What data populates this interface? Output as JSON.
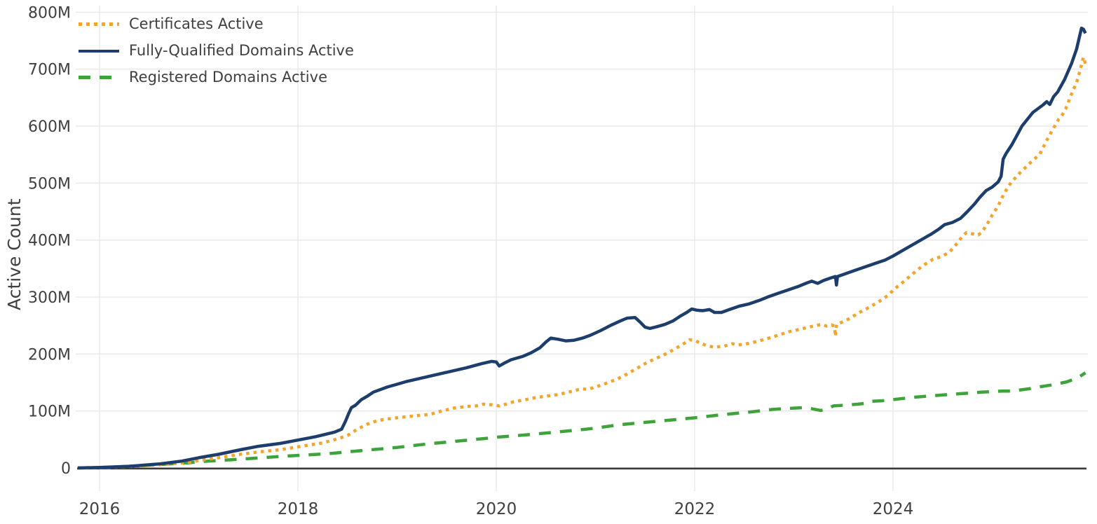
{
  "chart_data": {
    "type": "line",
    "title": "",
    "xlabel": "",
    "ylabel": "Active Count",
    "y_unit": "millions",
    "x_range": [
      2015.78,
      2025.97
    ],
    "ylim": [
      0,
      800
    ],
    "grid": "on",
    "legend_position": "top-left-inside",
    "background_color": "#ffffff",
    "gridline_color": "#e8e8e8",
    "axis_line_color": "#3a3a3a",
    "tick_text_color": "#404040",
    "yticks": [
      {
        "value": 0,
        "label": "0"
      },
      {
        "value": 100,
        "label": "100M"
      },
      {
        "value": 200,
        "label": "200M"
      },
      {
        "value": 300,
        "label": "300M"
      },
      {
        "value": 400,
        "label": "400M"
      },
      {
        "value": 500,
        "label": "500M"
      },
      {
        "value": 600,
        "label": "600M"
      },
      {
        "value": 700,
        "label": "700M"
      },
      {
        "value": 800,
        "label": "800M"
      }
    ],
    "xticks": [
      {
        "value": 2016,
        "label": "2016"
      },
      {
        "value": 2018,
        "label": "2018"
      },
      {
        "value": 2020,
        "label": "2020"
      },
      {
        "value": 2022,
        "label": "2022"
      },
      {
        "value": 2024,
        "label": "2024"
      }
    ],
    "series": [
      {
        "name": "Certificates Active",
        "color": "#f3a42a",
        "style": "dotted",
        "points": [
          [
            2015.78,
            0
          ],
          [
            2016.05,
            1
          ],
          [
            2016.35,
            3
          ],
          [
            2016.65,
            6
          ],
          [
            2016.9,
            10
          ],
          [
            2017.0,
            13
          ],
          [
            2017.2,
            18
          ],
          [
            2017.42,
            24
          ],
          [
            2017.6,
            28
          ],
          [
            2017.82,
            32
          ],
          [
            2018.0,
            37
          ],
          [
            2018.25,
            44
          ],
          [
            2018.4,
            51
          ],
          [
            2018.5,
            57
          ],
          [
            2018.6,
            68
          ],
          [
            2018.7,
            77
          ],
          [
            2018.8,
            83
          ],
          [
            2018.9,
            86
          ],
          [
            2019.0,
            88
          ],
          [
            2019.15,
            91
          ],
          [
            2019.33,
            94
          ],
          [
            2019.45,
            100
          ],
          [
            2019.57,
            105
          ],
          [
            2019.7,
            108
          ],
          [
            2019.8,
            109
          ],
          [
            2019.87,
            112
          ],
          [
            2019.95,
            111
          ],
          [
            2020.03,
            109
          ],
          [
            2020.1,
            112
          ],
          [
            2020.17,
            116
          ],
          [
            2020.3,
            120
          ],
          [
            2020.38,
            123
          ],
          [
            2020.5,
            126
          ],
          [
            2020.63,
            129
          ],
          [
            2020.75,
            134
          ],
          [
            2020.86,
            139
          ],
          [
            2020.92,
            138
          ],
          [
            2021.0,
            142
          ],
          [
            2021.1,
            148
          ],
          [
            2021.22,
            156
          ],
          [
            2021.32,
            165
          ],
          [
            2021.42,
            175
          ],
          [
            2021.52,
            185
          ],
          [
            2021.62,
            193
          ],
          [
            2021.72,
            201
          ],
          [
            2021.8,
            209
          ],
          [
            2021.88,
            217
          ],
          [
            2021.95,
            225
          ],
          [
            2022.0,
            224
          ],
          [
            2022.07,
            218
          ],
          [
            2022.14,
            214
          ],
          [
            2022.2,
            212
          ],
          [
            2022.3,
            214
          ],
          [
            2022.38,
            218
          ],
          [
            2022.44,
            216
          ],
          [
            2022.5,
            217
          ],
          [
            2022.58,
            220
          ],
          [
            2022.65,
            223
          ],
          [
            2022.75,
            228
          ],
          [
            2022.86,
            234
          ],
          [
            2022.95,
            239
          ],
          [
            2023.05,
            243
          ],
          [
            2023.15,
            247
          ],
          [
            2023.22,
            250
          ],
          [
            2023.28,
            252
          ],
          [
            2023.33,
            249
          ],
          [
            2023.38,
            251
          ],
          [
            2023.41,
            249
          ],
          [
            2023.42,
            231
          ],
          [
            2023.43,
            252
          ],
          [
            2023.5,
            257
          ],
          [
            2023.57,
            263
          ],
          [
            2023.65,
            272
          ],
          [
            2023.75,
            281
          ],
          [
            2023.85,
            291
          ],
          [
            2023.95,
            303
          ],
          [
            2024.02,
            315
          ],
          [
            2024.1,
            326
          ],
          [
            2024.2,
            341
          ],
          [
            2024.3,
            355
          ],
          [
            2024.4,
            366
          ],
          [
            2024.5,
            372
          ],
          [
            2024.57,
            379
          ],
          [
            2024.64,
            393
          ],
          [
            2024.7,
            407
          ],
          [
            2024.74,
            413
          ],
          [
            2024.8,
            411
          ],
          [
            2024.86,
            409
          ],
          [
            2024.9,
            415
          ],
          [
            2024.95,
            428
          ],
          [
            2025.0,
            444
          ],
          [
            2025.06,
            460
          ],
          [
            2025.12,
            482
          ],
          [
            2025.19,
            501
          ],
          [
            2025.28,
            518
          ],
          [
            2025.38,
            535
          ],
          [
            2025.48,
            551
          ],
          [
            2025.55,
            575
          ],
          [
            2025.6,
            591
          ],
          [
            2025.67,
            612
          ],
          [
            2025.7,
            618
          ],
          [
            2025.74,
            630
          ],
          [
            2025.81,
            661
          ],
          [
            2025.85,
            676
          ],
          [
            2025.89,
            700
          ],
          [
            2025.91,
            715
          ],
          [
            2025.92,
            721
          ],
          [
            2025.95,
            704
          ]
        ]
      },
      {
        "name": "Fully-Qualified Domains Active",
        "color": "#1d3e6d",
        "style": "solid",
        "points": [
          [
            2015.78,
            0
          ],
          [
            2016.0,
            1
          ],
          [
            2016.3,
            3
          ],
          [
            2016.6,
            7
          ],
          [
            2016.83,
            12
          ],
          [
            2017.0,
            18
          ],
          [
            2017.2,
            24
          ],
          [
            2017.42,
            32
          ],
          [
            2017.6,
            38
          ],
          [
            2017.82,
            43
          ],
          [
            2018.0,
            49
          ],
          [
            2018.18,
            55
          ],
          [
            2018.37,
            63
          ],
          [
            2018.44,
            68
          ],
          [
            2018.48,
            82
          ],
          [
            2018.51,
            95
          ],
          [
            2018.54,
            106
          ],
          [
            2018.58,
            110
          ],
          [
            2018.64,
            120
          ],
          [
            2018.7,
            126
          ],
          [
            2018.76,
            133
          ],
          [
            2018.9,
            142
          ],
          [
            2019.0,
            147
          ],
          [
            2019.1,
            152
          ],
          [
            2019.3,
            160
          ],
          [
            2019.5,
            168
          ],
          [
            2019.7,
            176
          ],
          [
            2019.85,
            183
          ],
          [
            2019.95,
            187
          ],
          [
            2020.0,
            186
          ],
          [
            2020.03,
            179
          ],
          [
            2020.08,
            184
          ],
          [
            2020.15,
            190
          ],
          [
            2020.27,
            196
          ],
          [
            2020.35,
            202
          ],
          [
            2020.44,
            211
          ],
          [
            2020.5,
            221
          ],
          [
            2020.55,
            228
          ],
          [
            2020.62,
            226
          ],
          [
            2020.7,
            223
          ],
          [
            2020.78,
            224
          ],
          [
            2020.87,
            228
          ],
          [
            2020.95,
            233
          ],
          [
            2021.05,
            241
          ],
          [
            2021.15,
            250
          ],
          [
            2021.25,
            258
          ],
          [
            2021.32,
            263
          ],
          [
            2021.4,
            264
          ],
          [
            2021.45,
            256
          ],
          [
            2021.5,
            247
          ],
          [
            2021.55,
            245
          ],
          [
            2021.62,
            248
          ],
          [
            2021.7,
            252
          ],
          [
            2021.78,
            258
          ],
          [
            2021.85,
            266
          ],
          [
            2021.92,
            273
          ],
          [
            2021.97,
            279
          ],
          [
            2022.02,
            277
          ],
          [
            2022.08,
            276
          ],
          [
            2022.15,
            278
          ],
          [
            2022.2,
            273
          ],
          [
            2022.27,
            273
          ],
          [
            2022.35,
            278
          ],
          [
            2022.45,
            284
          ],
          [
            2022.55,
            288
          ],
          [
            2022.65,
            294
          ],
          [
            2022.75,
            301
          ],
          [
            2022.85,
            307
          ],
          [
            2022.95,
            313
          ],
          [
            2023.05,
            319
          ],
          [
            2023.12,
            324
          ],
          [
            2023.18,
            328
          ],
          [
            2023.24,
            324
          ],
          [
            2023.3,
            329
          ],
          [
            2023.38,
            334
          ],
          [
            2023.42,
            336
          ],
          [
            2023.43,
            321
          ],
          [
            2023.44,
            336
          ],
          [
            2023.52,
            341
          ],
          [
            2023.62,
            347
          ],
          [
            2023.72,
            353
          ],
          [
            2023.82,
            359
          ],
          [
            2023.92,
            365
          ],
          [
            2024.0,
            372
          ],
          [
            2024.1,
            382
          ],
          [
            2024.2,
            392
          ],
          [
            2024.3,
            402
          ],
          [
            2024.38,
            410
          ],
          [
            2024.46,
            419
          ],
          [
            2024.52,
            427
          ],
          [
            2024.6,
            431
          ],
          [
            2024.68,
            438
          ],
          [
            2024.75,
            450
          ],
          [
            2024.82,
            463
          ],
          [
            2024.88,
            476
          ],
          [
            2024.94,
            487
          ],
          [
            2025.0,
            493
          ],
          [
            2025.06,
            502
          ],
          [
            2025.09,
            512
          ],
          [
            2025.11,
            542
          ],
          [
            2025.14,
            552
          ],
          [
            2025.2,
            568
          ],
          [
            2025.25,
            584
          ],
          [
            2025.3,
            600
          ],
          [
            2025.41,
            624
          ],
          [
            2025.51,
            637
          ],
          [
            2025.55,
            643
          ],
          [
            2025.58,
            638
          ],
          [
            2025.62,
            652
          ],
          [
            2025.66,
            660
          ],
          [
            2025.73,
            682
          ],
          [
            2025.8,
            710
          ],
          [
            2025.85,
            735
          ],
          [
            2025.88,
            757
          ],
          [
            2025.9,
            772
          ],
          [
            2025.92,
            770
          ],
          [
            2025.94,
            763
          ]
        ]
      },
      {
        "name": "Registered Domains Active",
        "color": "#3fa33c",
        "style": "dashed",
        "points": [
          [
            2015.78,
            0
          ],
          [
            2016.1,
            1
          ],
          [
            2016.4,
            4
          ],
          [
            2016.7,
            7
          ],
          [
            2016.9,
            9
          ],
          [
            2017.0,
            11
          ],
          [
            2017.2,
            13
          ],
          [
            2017.55,
            17
          ],
          [
            2017.9,
            21
          ],
          [
            2018.1,
            23
          ],
          [
            2018.3,
            25
          ],
          [
            2018.55,
            29
          ],
          [
            2018.8,
            33
          ],
          [
            2019.0,
            36
          ],
          [
            2019.3,
            42
          ],
          [
            2019.6,
            47
          ],
          [
            2019.9,
            52
          ],
          [
            2020.0,
            54
          ],
          [
            2020.3,
            58
          ],
          [
            2020.6,
            63
          ],
          [
            2020.9,
            68
          ],
          [
            2021.0,
            70
          ],
          [
            2021.25,
            76
          ],
          [
            2021.5,
            80
          ],
          [
            2021.75,
            84
          ],
          [
            2022.0,
            88
          ],
          [
            2022.3,
            94
          ],
          [
            2022.6,
            99
          ],
          [
            2022.8,
            103
          ],
          [
            2023.0,
            105
          ],
          [
            2023.1,
            106
          ],
          [
            2023.18,
            104
          ],
          [
            2023.27,
            101
          ],
          [
            2023.33,
            103
          ],
          [
            2023.4,
            109
          ],
          [
            2023.5,
            110
          ],
          [
            2023.65,
            112
          ],
          [
            2023.75,
            114
          ],
          [
            2023.78,
            117
          ],
          [
            2023.9,
            118
          ],
          [
            2024.0,
            120
          ],
          [
            2024.2,
            124
          ],
          [
            2024.42,
            127
          ],
          [
            2024.65,
            130
          ],
          [
            2024.89,
            133
          ],
          [
            2025.1,
            135
          ],
          [
            2025.2,
            135
          ],
          [
            2025.37,
            139
          ],
          [
            2025.5,
            143
          ],
          [
            2025.61,
            146
          ],
          [
            2025.75,
            151
          ],
          [
            2025.86,
            158
          ],
          [
            2025.94,
            167
          ]
        ]
      }
    ]
  },
  "legend": {
    "items": [
      {
        "label": "Certificates Active"
      },
      {
        "label": "Fully-Qualified Domains Active"
      },
      {
        "label": "Registered Domains Active"
      }
    ]
  }
}
